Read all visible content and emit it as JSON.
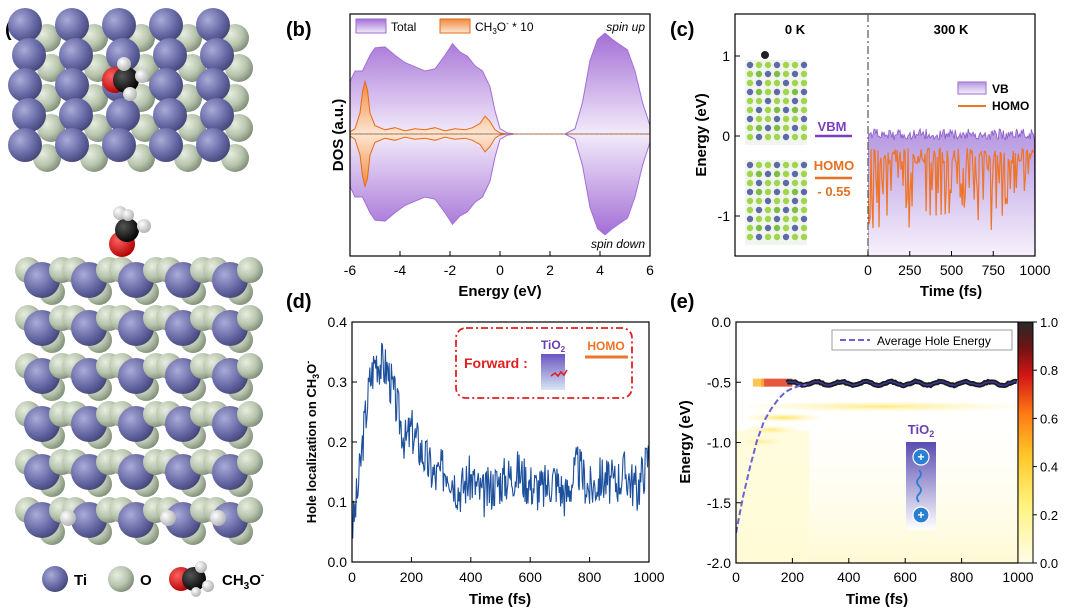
{
  "figure": {
    "panel_labels": {
      "a": "(a)",
      "b": "(b)",
      "c": "(c)",
      "d": "(d)",
      "e": "(e)"
    },
    "legend_a": {
      "ti": "Ti",
      "o": "O",
      "methoxy_main": "CH",
      "methoxy_sub": "3",
      "methoxy_sup": "O",
      "methoxy_charge": "-"
    }
  },
  "chart_data": [
    {
      "panel": "b",
      "type": "area",
      "xlabel": "Energy (eV)",
      "ylabel": "DOS (a.u.)",
      "xlim": [
        -6,
        6
      ],
      "xticks": [
        -6,
        -4,
        -2,
        0,
        2,
        4,
        6
      ],
      "tick_labels": [
        "-6",
        "-4",
        "-2",
        "0",
        "2",
        "4",
        "6"
      ],
      "legend": {
        "total": "Total",
        "ch3o_main": "CH",
        "ch3o_sub": "3",
        "ch3o_sup": "O",
        "ch3o_charge": "-",
        "ch3o_scale": " * 10"
      },
      "annotations": {
        "spin_up": "spin up",
        "spin_down": "spin down"
      },
      "colors": {
        "total": "#b07fd9",
        "ch3o": "#f08a3c"
      },
      "series": [
        {
          "name": "Total",
          "x": [
            -6,
            -5.8,
            -5.5,
            -5.2,
            -5,
            -4.6,
            -4.2,
            -3.8,
            -3.4,
            -3,
            -2.6,
            -2.2,
            -1.9,
            -1.6,
            -1.3,
            -1,
            -0.7,
            -0.4,
            -0.2,
            0,
            0.3,
            0.6,
            1,
            2,
            2.6,
            3,
            3.3,
            3.6,
            3.9,
            4.2,
            4.5,
            4.8,
            5.1,
            5.4,
            5.7,
            6
          ],
          "y": [
            0.5,
            0.6,
            0.6,
            0.75,
            0.82,
            0.83,
            0.75,
            0.68,
            0.64,
            0.6,
            0.62,
            0.75,
            0.86,
            0.78,
            0.74,
            0.65,
            0.6,
            0.45,
            0.22,
            0.05,
            0.01,
            0,
            0,
            0,
            0,
            0.05,
            0.3,
            0.7,
            0.9,
            0.96,
            0.9,
            0.85,
            0.8,
            0.6,
            0.3,
            0.08
          ]
        },
        {
          "name": "CH3O- * 10",
          "x": [
            -6,
            -5.8,
            -5.6,
            -5.5,
            -5.4,
            -5.3,
            -5.2,
            -5,
            -4.6,
            -4.2,
            -3.8,
            -3.4,
            -3,
            -2.6,
            -2.2,
            -1.8,
            -1.4,
            -1.1,
            -0.8,
            -0.6,
            -0.4,
            -0.2,
            0,
            0.3,
            6
          ],
          "y": [
            0.02,
            0.05,
            0.2,
            0.4,
            0.5,
            0.42,
            0.2,
            0.08,
            0.04,
            0.06,
            0.03,
            0.05,
            0.04,
            0.06,
            0.03,
            0.05,
            0.04,
            0.06,
            0.1,
            0.17,
            0.12,
            0.04,
            0.01,
            0,
            0
          ]
        }
      ]
    },
    {
      "panel": "c",
      "type": "line",
      "xlabel": "Time (fs)",
      "ylabel": "Energy (eV)",
      "ylim": [
        -1.5,
        1.5
      ],
      "yticks": [
        -1,
        0,
        1
      ],
      "ytick_labels": [
        "-1",
        "0",
        "1"
      ],
      "xlim": [
        0,
        1000
      ],
      "xticks": [
        0,
        250,
        500,
        750,
        1000
      ],
      "xtick_labels": [
        "0",
        "250",
        "500",
        "750",
        "1000"
      ],
      "sections": {
        "left": "0 K",
        "right": "300 K"
      },
      "labels_0K": {
        "vbm": "VBM",
        "homo": "HOMO",
        "diff": "- 0.55"
      },
      "static_levels": {
        "VBM": 0,
        "HOMO": -0.55
      },
      "legend": {
        "vb": "VB",
        "homo": "HOMO"
      },
      "colors": {
        "vb": "#9b6bd0",
        "homo": "#ee7428"
      },
      "series": [
        {
          "name": "VB",
          "x": [
            0,
            50,
            100,
            150,
            200,
            250,
            300,
            350,
            400,
            450,
            500,
            550,
            600,
            650,
            700,
            750,
            800,
            850,
            900,
            950,
            1000
          ],
          "y": [
            0.02,
            -0.02,
            0.05,
            -0.05,
            0.03,
            -0.03,
            0.06,
            -0.01,
            0.02,
            -0.04,
            0.04,
            -0.03,
            0.01,
            0.05,
            -0.02,
            0.03,
            -0.05,
            0.02,
            0.04,
            -0.02,
            0
          ]
        },
        {
          "name": "HOMO",
          "x": [
            0,
            50,
            100,
            150,
            200,
            250,
            300,
            350,
            400,
            450,
            500,
            550,
            600,
            650,
            700,
            750,
            800,
            850,
            900,
            950,
            1000
          ],
          "y": [
            -0.1,
            -0.95,
            -0.15,
            -0.6,
            -0.2,
            -0.9,
            -0.1,
            -0.7,
            -0.2,
            -0.5,
            -0.15,
            -0.85,
            -0.25,
            -0.6,
            -0.1,
            -0.75,
            -0.2,
            -0.55,
            -0.15,
            -0.95,
            -0.2
          ]
        }
      ]
    },
    {
      "panel": "d",
      "type": "line",
      "xlabel": "Time (fs)",
      "ylabel_main": "Hole localization on CH",
      "ylabel_sub": "3",
      "ylabel_sup": "O",
      "ylabel_charge": "-",
      "xlim": [
        0,
        1000
      ],
      "ylim": [
        0,
        0.4
      ],
      "xticks": [
        0,
        200,
        400,
        600,
        800,
        1000
      ],
      "xtick_labels": [
        "0",
        "200",
        "400",
        "600",
        "800",
        "1000"
      ],
      "yticks": [
        0,
        0.1,
        0.2,
        0.3,
        0.4
      ],
      "ytick_labels": [
        "0.0",
        "0.1",
        "0.2",
        "0.3",
        "0.4"
      ],
      "color": "#1c4f9c",
      "inset": {
        "forward": "Forward :",
        "tio2_main": "TiO",
        "tio2_sub": "2",
        "homo": "HOMO"
      },
      "series": [
        {
          "name": "Hole localization",
          "x": [
            0,
            20,
            40,
            60,
            80,
            100,
            120,
            140,
            160,
            180,
            200,
            240,
            280,
            320,
            360,
            400,
            440,
            480,
            520,
            560,
            600,
            640,
            680,
            720,
            760,
            800,
            840,
            880,
            920,
            960,
            1000
          ],
          "y": [
            0.05,
            0.12,
            0.22,
            0.3,
            0.34,
            0.33,
            0.32,
            0.28,
            0.24,
            0.2,
            0.22,
            0.18,
            0.14,
            0.16,
            0.12,
            0.14,
            0.11,
            0.13,
            0.14,
            0.15,
            0.13,
            0.12,
            0.14,
            0.11,
            0.16,
            0.12,
            0.14,
            0.13,
            0.15,
            0.12,
            0.18
          ]
        }
      ]
    },
    {
      "panel": "e",
      "type": "heatmap",
      "xlabel": "Time (fs)",
      "ylabel": "Energy (eV)",
      "xlim": [
        0,
        1000
      ],
      "ylim": [
        -2.0,
        0.0
      ],
      "xticks": [
        0,
        200,
        400,
        600,
        800,
        1000
      ],
      "xtick_labels": [
        "0",
        "200",
        "400",
        "600",
        "800",
        "1000"
      ],
      "yticks": [
        -2.0,
        -1.5,
        -1.0,
        -0.5,
        0.0
      ],
      "ytick_labels": [
        "-2.0",
        "-1.5",
        "-1.0",
        "-0.5",
        "0.0"
      ],
      "colorbar": {
        "range": [
          0,
          1
        ],
        "ticks": [
          0,
          0.2,
          0.4,
          0.6,
          0.8,
          1.0
        ],
        "tick_labels": [
          "0.0",
          "0.2",
          "0.4",
          "0.6",
          "0.8",
          "1.0"
        ]
      },
      "legend": "Average Hole Energy",
      "inset_label_main": "TiO",
      "inset_label_sub": "2",
      "series": [
        {
          "name": "Average Hole Energy",
          "x": [
            0,
            25,
            50,
            75,
            100,
            125,
            150,
            175,
            200,
            225,
            250
          ],
          "y": [
            -1.75,
            -1.45,
            -1.2,
            -0.98,
            -0.82,
            -0.72,
            -0.64,
            -0.58,
            -0.55,
            -0.53,
            -0.52
          ]
        }
      ]
    }
  ]
}
